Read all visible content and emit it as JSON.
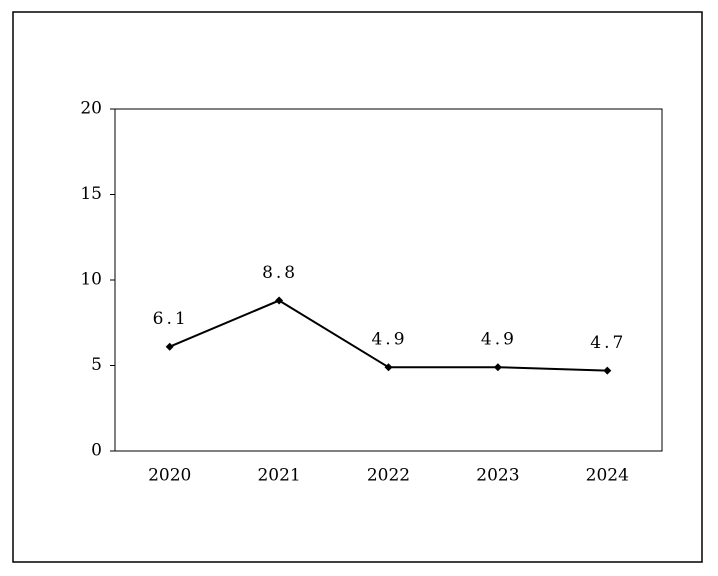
{
  "chart_data": {
    "type": "line",
    "categories": [
      "2020",
      "2021",
      "2022",
      "2023",
      "2024"
    ],
    "values": [
      6.1,
      8.8,
      4.9,
      4.9,
      4.7
    ],
    "color": "#000000",
    "ylim": [
      0,
      20
    ],
    "yticks": [
      0,
      5,
      10,
      15,
      20
    ],
    "grid": false
  }
}
